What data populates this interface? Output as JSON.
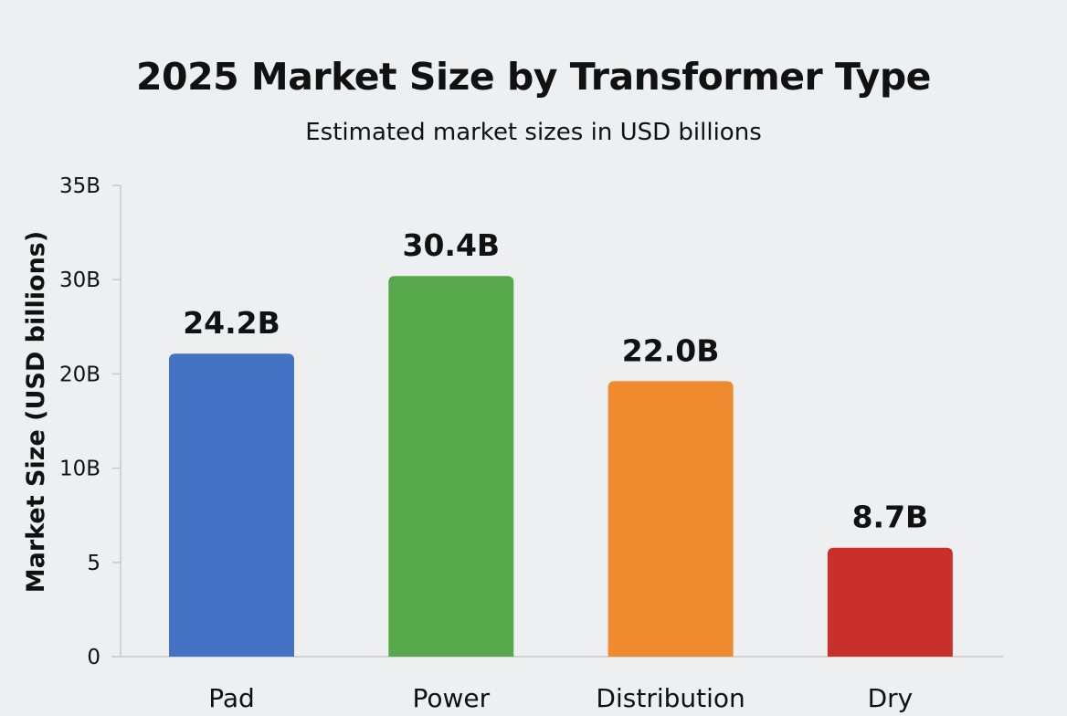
{
  "chart_data": {
    "type": "bar",
    "title": "2025 Market Size by Transformer Type",
    "subtitle": "Estimated market sizes in USD billions",
    "xlabel": "",
    "ylabel": "Market Size (USD billions)",
    "categories": [
      "Pad",
      "Power",
      "Distribution",
      "Dry"
    ],
    "values": [
      24.2,
      30.4,
      22.0,
      8.7
    ],
    "data_labels": [
      "24.2B",
      "30.4B",
      "22.0B",
      "8.7B"
    ],
    "colors": [
      "#4472c4",
      "#57a84a",
      "#f08a2e",
      "#c9302c"
    ],
    "y_tick_labels": [
      "0",
      "5",
      "10B",
      "20B",
      "30B",
      "35B"
    ],
    "ylim": [
      0,
      35
    ],
    "grid": false,
    "legend": "none"
  }
}
